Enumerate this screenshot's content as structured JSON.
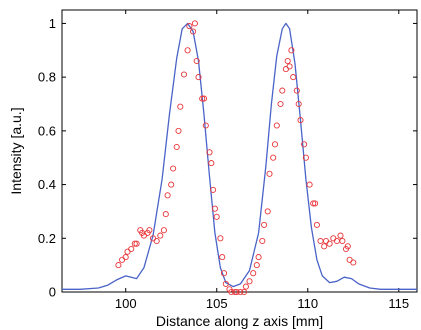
{
  "chart_data": {
    "type": "line",
    "xlabel": "Distance along z axis [mm]",
    "ylabel": "Intensity [a.u.]",
    "xlim": [
      96.5,
      116
    ],
    "ylim": [
      0,
      1.05
    ],
    "xticks": [
      100,
      105,
      110,
      115
    ],
    "yticks": [
      0,
      0.2,
      0.4,
      0.6,
      0.8,
      1
    ],
    "ytick_labels": [
      "0",
      "0.2",
      "0.4",
      "0.6",
      "0.8",
      "1"
    ],
    "grid": false,
    "legend": "none",
    "series": [
      {
        "style": "line",
        "color": "#4a63c8",
        "x": [
          96.5,
          97.5,
          98.5,
          99.0,
          99.5,
          100.0,
          100.3,
          100.6,
          101.0,
          101.5,
          102.0,
          102.4,
          102.8,
          103.1,
          103.4,
          103.7,
          104.0,
          104.3,
          104.6,
          104.9,
          105.2,
          105.5,
          105.9,
          106.3,
          106.8,
          107.3,
          107.7,
          108.0,
          108.3,
          108.6,
          108.8,
          109.0,
          109.3,
          109.6,
          109.9,
          110.2,
          110.5,
          110.8,
          111.2,
          111.6,
          112.0,
          112.4,
          112.8,
          113.4,
          114.0,
          115.0,
          116.0
        ],
        "y": [
          0.01,
          0.01,
          0.015,
          0.025,
          0.045,
          0.06,
          0.055,
          0.05,
          0.09,
          0.21,
          0.42,
          0.66,
          0.87,
          0.98,
          1.0,
          0.97,
          0.86,
          0.66,
          0.43,
          0.22,
          0.09,
          0.035,
          0.02,
          0.03,
          0.08,
          0.22,
          0.47,
          0.7,
          0.88,
          0.98,
          1.0,
          0.98,
          0.85,
          0.64,
          0.42,
          0.24,
          0.12,
          0.06,
          0.035,
          0.04,
          0.055,
          0.05,
          0.03,
          0.015,
          0.01,
          0.01,
          0.01
        ]
      },
      {
        "style": "markers",
        "color": "#e8363a",
        "x": [
          99.6,
          99.8,
          100.0,
          100.1,
          100.3,
          100.5,
          100.6,
          100.8,
          100.9,
          101.0,
          101.2,
          101.3,
          101.5,
          101.7,
          101.9,
          102.1,
          102.2,
          102.3,
          102.5,
          102.6,
          102.8,
          102.9,
          103.0,
          103.2,
          103.4,
          103.5,
          103.7,
          103.8,
          103.9,
          104.0,
          104.2,
          104.3,
          104.4,
          104.6,
          104.7,
          104.8,
          104.9,
          105.0,
          105.2,
          105.3,
          105.4,
          105.5,
          105.7,
          105.8,
          106.0,
          106.1,
          106.3,
          106.5,
          106.6,
          106.8,
          107.0,
          107.2,
          107.3,
          107.5,
          107.6,
          107.8,
          107.9,
          108.1,
          108.2,
          108.3,
          108.5,
          108.6,
          108.8,
          108.9,
          109.0,
          109.1,
          109.2,
          109.4,
          109.5,
          109.6,
          109.8,
          109.9,
          110.1,
          110.3,
          110.4,
          110.5,
          110.7,
          110.9,
          111.0,
          111.2,
          111.4,
          111.6,
          111.8,
          111.9,
          112.1,
          112.2,
          112.3,
          112.5
        ],
        "y": [
          0.1,
          0.12,
          0.13,
          0.15,
          0.16,
          0.18,
          0.18,
          0.23,
          0.22,
          0.21,
          0.22,
          0.23,
          0.2,
          0.19,
          0.21,
          0.23,
          0.29,
          0.36,
          0.4,
          0.46,
          0.54,
          0.6,
          0.69,
          0.81,
          0.9,
          0.99,
          0.97,
          1.0,
          0.86,
          0.8,
          0.72,
          0.72,
          0.62,
          0.52,
          0.48,
          0.38,
          0.31,
          0.28,
          0.2,
          0.13,
          0.07,
          0.03,
          0.01,
          0.0,
          0.0,
          0.0,
          0.0,
          0.0,
          0.02,
          0.04,
          0.07,
          0.1,
          0.13,
          0.19,
          0.25,
          0.3,
          0.44,
          0.5,
          0.55,
          0.62,
          0.7,
          0.75,
          0.83,
          0.86,
          0.84,
          0.9,
          0.8,
          0.75,
          0.7,
          0.64,
          0.55,
          0.5,
          0.4,
          0.33,
          0.33,
          0.25,
          0.19,
          0.17,
          0.19,
          0.18,
          0.2,
          0.19,
          0.21,
          0.19,
          0.16,
          0.17,
          0.12,
          0.11
        ]
      }
    ]
  }
}
